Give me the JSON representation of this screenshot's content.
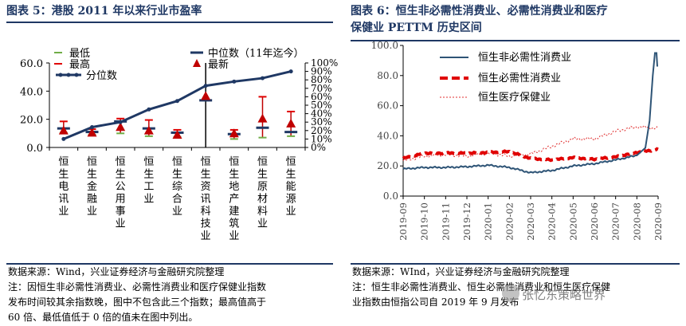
{
  "left_panel": {
    "title": "图表 5：港股 2011 年以来行业市盈率",
    "source": "数据来源：Wind，兴业证券经济与金融研究院整理",
    "note_lines": [
      "注：因恒生非必需性消费业、必需性消费业和医疗保健业指数",
      "发布时间较其余指数晚，图中不包含此三个指数；最高值高于",
      "60 倍、最低值低于 0 倍的值未在图中列出。"
    ]
  },
  "right_panel": {
    "title_lines": [
      "图表 6：恒生非必需性消费业、必需性消费业和医疗",
      "保健业 PETTM 历史区间"
    ],
    "source": "数据来源：WInd，兴业证券经济与金融研究院整理",
    "note_lines": [
      "注：恒生非必需性消费业、恒生必需性消费业和恒生医疗保健",
      "业指数由恒指公司自 2019 年 9 月发布"
    ]
  },
  "watermark": "张忆东策略世界",
  "colors": {
    "title": "#1f3864",
    "navy": "#1f3864",
    "red": "#e00000",
    "green": "#70ad47",
    "bar_red": "#c00000",
    "line_blue": "#2e5476",
    "dotted_red": "#e03030"
  },
  "chart_data": [
    {
      "type": "line",
      "categories": [
        "恒生电讯业",
        "恒生金融业",
        "恒生公用事业",
        "恒生工业",
        "恒生综合业",
        "恒生资讯科技业",
        "恒生地产建筑业",
        "恒生原材料业",
        "恒生能源业"
      ],
      "ylim": [
        0,
        60
      ],
      "yticks": [
        "0.0",
        "20.0",
        "40.0",
        "60.0"
      ],
      "y2lim": [
        0,
        100
      ],
      "y2ticks": [
        "0%",
        "10%",
        "20%",
        "30%",
        "40%",
        "50%",
        "60%",
        "70%",
        "80%",
        "90%",
        "100%"
      ],
      "legend": [
        "最低",
        "最高",
        "分位数",
        "中位数（11年迄今）",
        "最新"
      ],
      "series": [
        {
          "name": "最低",
          "values": [
            10.5,
            9.0,
            10.0,
            8.0,
            7.5,
            null,
            6.0,
            7.0,
            8.0
          ]
        },
        {
          "name": "最高",
          "values": [
            18.5,
            13.0,
            20.5,
            19.5,
            12.5,
            null,
            12.5,
            36.0,
            25.5
          ]
        },
        {
          "name": "中位数（11年迄今）",
          "values": [
            13.5,
            11.0,
            18.5,
            13.5,
            10.5,
            33.5,
            9.5,
            14.0,
            11.0
          ]
        },
        {
          "name": "最新",
          "values": [
            11.5,
            10.0,
            14.0,
            11.5,
            8.5,
            36.0,
            9.5,
            20.0,
            16.5
          ]
        },
        {
          "name": "分位数",
          "values": [
            10,
            24,
            30,
            45,
            55,
            73,
            78,
            82,
            90
          ],
          "unit": "%"
        }
      ]
    },
    {
      "type": "line",
      "x": [
        "2019-09",
        "2019-10",
        "2019-11",
        "2019-12",
        "2020-01",
        "2020-02",
        "2020-03",
        "2020-04",
        "2020-05",
        "2020-06",
        "2020-07",
        "2020-08",
        "2020-09"
      ],
      "ylim": [
        0,
        100
      ],
      "yticks": [
        "0.0",
        "20.0",
        "40.0",
        "60.0",
        "80.0",
        "100.0"
      ],
      "legend": [
        "恒生非必需性消费业",
        "恒生必需性消费业",
        "恒生医疗保健业"
      ],
      "series": [
        {
          "name": "恒生非必需性消费业",
          "values": [
            18,
            19,
            19,
            19.5,
            20.5,
            19,
            15.5,
            17,
            20,
            21.5,
            24,
            27,
            86
          ]
        },
        {
          "name": "恒生必需性消费业",
          "values": [
            25,
            28.5,
            28.5,
            28.5,
            29,
            29.5,
            25,
            24,
            25.5,
            24.5,
            26,
            29,
            31
          ]
        },
        {
          "name": "恒生医疗保健业",
          "values": [
            23.5,
            26.5,
            27.5,
            26.5,
            28.5,
            26.5,
            28,
            33,
            38,
            38,
            43,
            46,
            45
          ]
        }
      ]
    }
  ]
}
